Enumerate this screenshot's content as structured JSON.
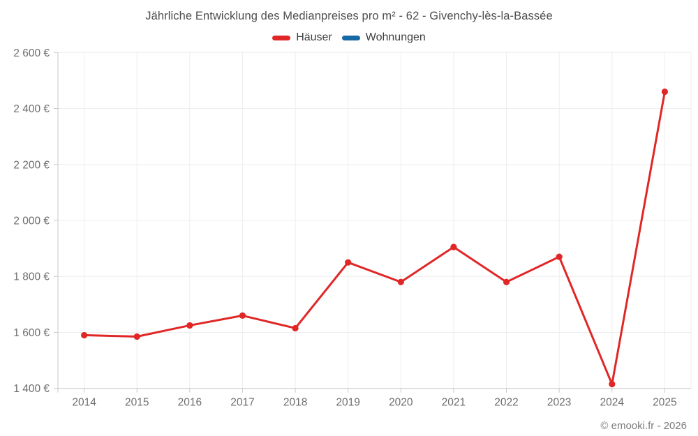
{
  "title": "Jährliche Entwicklung des Medianpreises pro m² - 62 - Givenchy-lès-la-Bassée",
  "legend": [
    {
      "label": "Häuser",
      "color": "#e02727"
    },
    {
      "label": "Wohnungen",
      "color": "#1769a5"
    }
  ],
  "footer": "© emooki.fr - 2026",
  "chart_data": {
    "type": "line",
    "title": "Jährliche Entwicklung des Medianpreises pro m² - 62 - Givenchy-lès-la-Bassée",
    "xlabel": "",
    "ylabel": "",
    "x": [
      "2014",
      "2015",
      "2016",
      "2017",
      "2018",
      "2019",
      "2020",
      "2021",
      "2022",
      "2023",
      "2024",
      "2025"
    ],
    "series": [
      {
        "name": "Häuser",
        "color": "#e02727",
        "values": [
          1590,
          1585,
          1625,
          1660,
          1615,
          1850,
          1780,
          1905,
          1780,
          1870,
          1415,
          2460
        ]
      },
      {
        "name": "Wohnungen",
        "color": "#1769a5",
        "values": []
      }
    ],
    "ylim": [
      1400,
      2600
    ],
    "yticks": [
      {
        "value": 1400,
        "label": "1 400 €"
      },
      {
        "value": 1600,
        "label": "1 600 €"
      },
      {
        "value": 1800,
        "label": "1 800 €"
      },
      {
        "value": 2000,
        "label": "2 000 €"
      },
      {
        "value": 2200,
        "label": "2 200 €"
      },
      {
        "value": 2400,
        "label": "2 400 €"
      },
      {
        "value": 2600,
        "label": "2 600 €"
      }
    ],
    "grid": true,
    "legend_position": "top",
    "colors": {
      "grid": "#ededed",
      "axis": "#c9c9c9",
      "tick_text": "#6e6e6e"
    }
  }
}
